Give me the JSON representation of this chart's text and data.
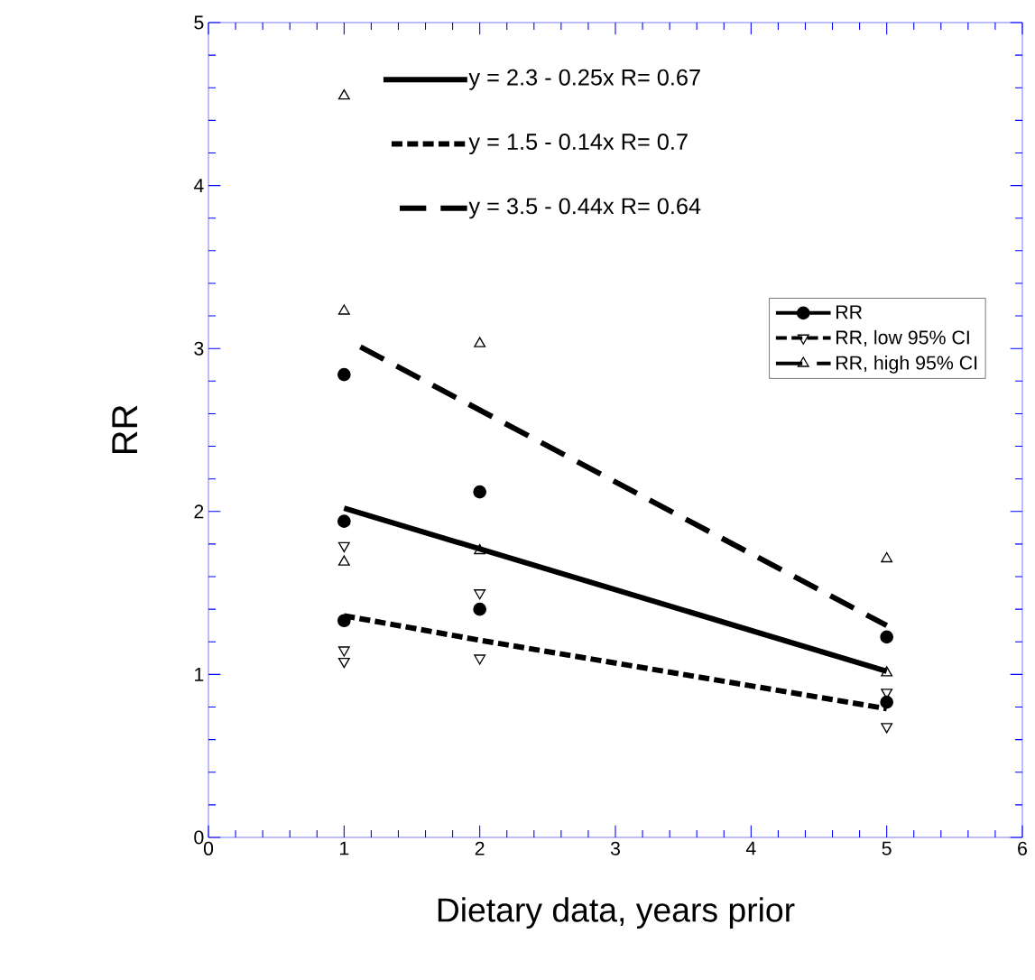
{
  "chart_data": {
    "type": "scatter",
    "xlabel": "Dietary data, years prior",
    "ylabel": "RR",
    "xlim": [
      0,
      6
    ],
    "xticks": [
      0,
      1,
      2,
      3,
      4,
      5,
      6
    ],
    "ylim": [
      0,
      5
    ],
    "yticks": [
      0,
      1,
      2,
      3,
      4,
      5
    ],
    "legend": "right",
    "grid": false,
    "series": [
      {
        "name": "RR",
        "color": "#000000",
        "marker": "circle",
        "line_style": "solid",
        "x": [
          1,
          1,
          1,
          2,
          2,
          5,
          5
        ],
        "values": [
          2.84,
          1.94,
          1.33,
          2.12,
          1.4,
          1.23,
          0.83
        ]
      },
      {
        "name": "RR, low 95% CI",
        "color": "#000000",
        "marker": "triangle-down",
        "line_style": "dotted",
        "x": [
          1,
          1,
          1,
          2,
          2,
          5,
          5
        ],
        "values": [
          1.79,
          1.15,
          1.08,
          1.5,
          1.1,
          0.89,
          0.68
        ]
      },
      {
        "name": "RR, high 95% CI",
        "color": "#000000",
        "marker": "triangle",
        "line_style": "dashed",
        "x": [
          1,
          1,
          1,
          2,
          2,
          5,
          5
        ],
        "values": [
          4.55,
          3.23,
          1.69,
          3.03,
          1.76,
          1.71,
          1.01
        ]
      },
      {
        "name": "y = 2.3 - 0.25x   R= 0.67",
        "type": "line",
        "color": "#000000",
        "line_style": "solid",
        "x": [
          1,
          5
        ],
        "values": [
          2.02,
          1.02
        ]
      },
      {
        "name": "y = 1.5 - 0.14x   R= 0.7",
        "type": "line",
        "color": "#000000",
        "line_style": "dotted",
        "x": [
          1,
          2,
          5
        ],
        "values": [
          1.36,
          1.21,
          0.79
        ]
      },
      {
        "name": "y = 3.5 - 0.44x   R= 0.64",
        "type": "line",
        "color": "#000000",
        "line_style": "dashed",
        "x": [
          1.12,
          5
        ],
        "values": [
          3.01,
          1.3
        ]
      }
    ]
  }
}
